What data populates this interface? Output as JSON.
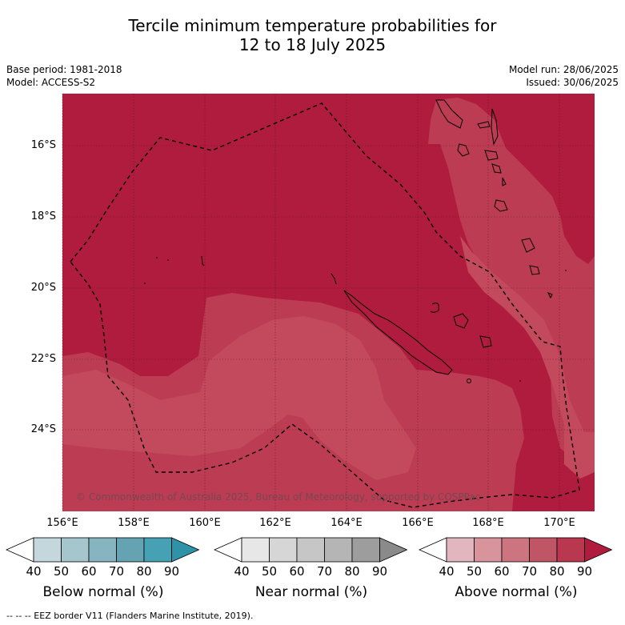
{
  "title_line1": "Tercile minimum temperature probabilities for",
  "title_line2": "12 to 18 July 2025",
  "base_period": "Base period: 1981-2018",
  "model": "Model: ACCESS-S2",
  "model_run": "Model run: 28/06/2025",
  "issued": "Issued: 30/06/2025",
  "lat_labels": [
    "16°S",
    "18°S",
    "20°S",
    "22°S",
    "24°S"
  ],
  "lon_labels": [
    "156°E",
    "158°E",
    "160°E",
    "162°E",
    "164°E",
    "166°E",
    "168°E",
    "170°E"
  ],
  "copyright": "© Commonwealth of Australia 2025, Bureau of Meteorology, supported by COSPPac",
  "colorbars": [
    {
      "title": "Below normal (%)",
      "ticks": [
        "40",
        "50",
        "60",
        "70",
        "80",
        "90"
      ],
      "colors": [
        "#ffffff",
        "#c3d7dd",
        "#a5c6cd",
        "#86b4c0",
        "#66a3b2",
        "#45a1b3",
        "#2f93a8"
      ]
    },
    {
      "title": "Near normal (%)",
      "ticks": [
        "40",
        "50",
        "60",
        "70",
        "80",
        "90"
      ],
      "colors": [
        "#ffffff",
        "#e7e7e7",
        "#d6d6d6",
        "#c6c6c6",
        "#b5b5b5",
        "#9d9d9d",
        "#8a8a8a"
      ]
    },
    {
      "title": "Above normal (%)",
      "ticks": [
        "40",
        "50",
        "60",
        "70",
        "80",
        "90"
      ],
      "colors": [
        "#ffffff",
        "#e1b6be",
        "#d8949c",
        "#cc7580",
        "#c05566",
        "#b9374f",
        "#b01c3d"
      ]
    }
  ],
  "footer": "--  --  -- EEZ border V11 (Flanders Marine Institute, 2019).",
  "map_colors": {
    "above_90": "#b01c3d",
    "above_80": "#b9374f",
    "above_70": "#c04a5c"
  }
}
